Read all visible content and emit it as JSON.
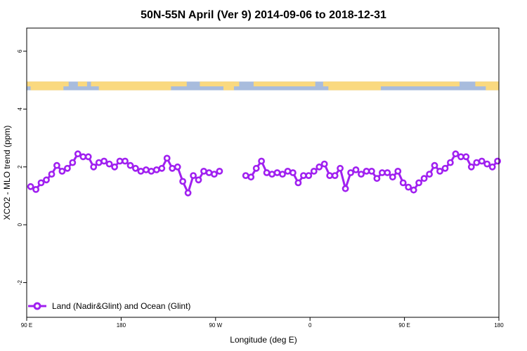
{
  "chart_data": {
    "type": "line",
    "title": "50N-55N April (Ver 9)   2014-09-06 to 2018-12-31",
    "xlabel": "Longitude (deg E)",
    "ylabel": "XCO2 - MLO trend (ppm)",
    "xlim": [
      90,
      450
    ],
    "ylim": [
      -3.2,
      6.8
    ],
    "x_ticks": [
      {
        "value": 90,
        "label": "90 E"
      },
      {
        "value": 162,
        "label": "180"
      },
      {
        "value": 234,
        "label": "90 W"
      },
      {
        "value": 306,
        "label": "0"
      },
      {
        "value": 378,
        "label": "90 E"
      },
      {
        "value": 450,
        "label": "180"
      }
    ],
    "y_ticks": [
      -2,
      0,
      2,
      4,
      6
    ],
    "grid": false,
    "legend_position": "bottom-left",
    "land_ocean_band": {
      "y_range": [
        4.65,
        4.95
      ],
      "land_color": "#fad97f",
      "ocean_color": "#a8bcdd"
    },
    "series": [
      {
        "name": "Land (Nadir&Glint) and Ocean (Glint)",
        "color": "#a020f0",
        "x": [
          93,
          97,
          101,
          105,
          109,
          113,
          117,
          121,
          125,
          129,
          133,
          137,
          141,
          145,
          149,
          153,
          157,
          161,
          165,
          169,
          173,
          177,
          181,
          185,
          189,
          193,
          197,
          201,
          205,
          209,
          213,
          217,
          221,
          225,
          229,
          233,
          237,
          null,
          257,
          261,
          265,
          269,
          273,
          277,
          281,
          285,
          289,
          293,
          297,
          301,
          305,
          309,
          313,
          317,
          321,
          325,
          329,
          333,
          337,
          341,
          345,
          349,
          353,
          357,
          361,
          365,
          369,
          373,
          377,
          381,
          385,
          389,
          393,
          397,
          401,
          405,
          409,
          413,
          417,
          421,
          425,
          429,
          433,
          437,
          441,
          445,
          449
        ],
        "y": [
          1.32,
          1.22,
          1.45,
          1.55,
          1.75,
          2.05,
          1.85,
          1.95,
          2.15,
          2.45,
          2.35,
          2.35,
          2.0,
          2.15,
          2.2,
          2.1,
          2.0,
          2.2,
          2.2,
          2.05,
          1.95,
          1.85,
          1.9,
          1.85,
          1.9,
          1.95,
          2.3,
          1.95,
          2.0,
          1.5,
          1.1,
          1.7,
          1.55,
          1.85,
          1.8,
          1.75,
          1.85,
          null,
          1.7,
          1.65,
          1.95,
          2.2,
          1.8,
          1.75,
          1.8,
          1.75,
          1.85,
          1.8,
          1.45,
          1.7,
          1.7,
          1.85,
          2.0,
          2.1,
          1.7,
          1.7,
          1.95,
          1.25,
          1.8,
          1.9,
          1.75,
          1.85,
          1.85,
          1.6,
          1.8,
          1.8,
          1.65,
          1.85,
          1.45,
          1.3,
          1.2,
          1.45,
          1.6,
          1.75,
          2.05,
          1.85,
          1.95,
          2.15,
          2.45,
          2.35,
          2.35,
          2.0,
          2.15,
          2.2,
          2.1,
          2.0,
          2.2
        ]
      }
    ]
  }
}
